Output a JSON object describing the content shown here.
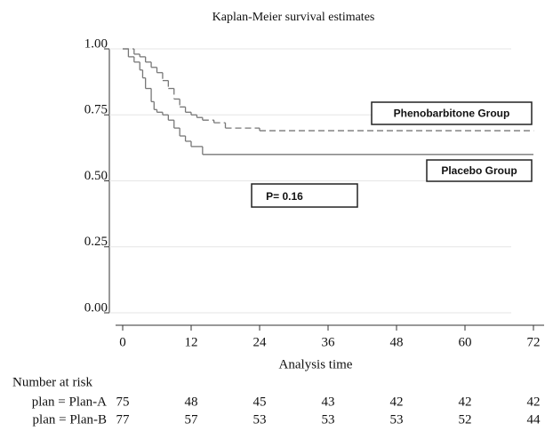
{
  "chart_data": {
    "type": "step",
    "title": "Kaplan-Meier survival estimates",
    "x_label": "Analysis time",
    "xlim": [
      0,
      72
    ],
    "xticks": [
      0,
      12,
      24,
      36,
      48,
      60,
      72
    ],
    "ylim": [
      0,
      1
    ],
    "yticks": [
      {
        "value": 0,
        "label": "0.00"
      },
      {
        "value": 0.25,
        "label": "0.25"
      },
      {
        "value": 0.5,
        "label": "0.50"
      },
      {
        "value": 0.75,
        "label": "0.75"
      },
      {
        "value": 1,
        "label": "1.00"
      }
    ],
    "grid": true,
    "series": [
      {
        "name": "Phenobarbitone Group",
        "color": "#777777",
        "line_style": "dashed",
        "x": [
          0,
          2,
          3,
          4,
          5,
          6,
          7,
          8,
          9,
          10,
          11,
          12,
          13,
          14,
          16,
          18,
          24,
          72
        ],
        "values": [
          1.0,
          0.98,
          0.97,
          0.95,
          0.93,
          0.91,
          0.88,
          0.85,
          0.81,
          0.78,
          0.76,
          0.75,
          0.74,
          0.73,
          0.72,
          0.7,
          0.69,
          0.69
        ]
      },
      {
        "name": "Placebo Group",
        "color": "#777777",
        "line_style": "solid",
        "x": [
          0,
          1,
          2,
          3,
          3.5,
          4,
          5,
          5.5,
          6,
          7,
          8,
          9,
          10,
          11,
          12,
          14,
          72
        ],
        "values": [
          1.0,
          0.97,
          0.95,
          0.92,
          0.89,
          0.85,
          0.8,
          0.77,
          0.76,
          0.75,
          0.73,
          0.7,
          0.67,
          0.65,
          0.63,
          0.6,
          0.6
        ]
      }
    ],
    "annotation": "P= 0.16",
    "risk_table": {
      "title": "Number at risk",
      "rows": [
        {
          "label": "plan = Plan-A",
          "values": [
            75,
            48,
            45,
            43,
            42,
            42,
            42
          ]
        },
        {
          "label": "plan = Plan-B",
          "values": [
            77,
            57,
            53,
            53,
            53,
            52,
            44
          ]
        }
      ]
    }
  }
}
